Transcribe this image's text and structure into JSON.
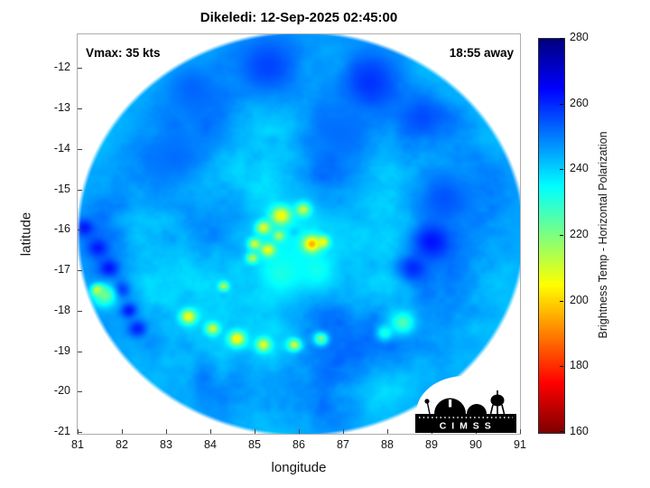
{
  "header": {
    "title": "Dikeledi: 12-Sep-2025 02:45:00"
  },
  "annotations": {
    "vmax": "Vmax: 35 kts",
    "eta": "18:55 away"
  },
  "axes": {
    "xlabel": "longitude",
    "ylabel": "latitude",
    "xlim": [
      81,
      91
    ],
    "ylim": [
      -21.04,
      -11.17
    ],
    "xticks": [
      81,
      82,
      83,
      84,
      85,
      86,
      87,
      88,
      89,
      90,
      91
    ],
    "yticks": [
      -12,
      -13,
      -14,
      -15,
      -16,
      -17,
      -18,
      -19,
      -20,
      -21
    ]
  },
  "colorbar": {
    "label": "Brightness Temp - Horizontal Polarization",
    "min": 160,
    "max": 280,
    "ticks": [
      280,
      260,
      240,
      220,
      200,
      180,
      160
    ],
    "colormap": "jet_reversed"
  },
  "logo": {
    "text": "C I M S S"
  },
  "colors": {
    "background": "#ffffff",
    "text": "#000000",
    "axis_box": "#adadad",
    "colorbar_top": "#000080",
    "colorbar_bottom": "#800000"
  },
  "chart_data": {
    "type": "heatmap",
    "title": "Dikeledi: 12-Sep-2025 02:45:00",
    "storm_name": "Dikeledi",
    "valid_time": "12-Sep-2025 02:45:00",
    "vmax_kts": 35,
    "eta_label": "18:55 away",
    "xlabel": "longitude",
    "ylabel": "latitude",
    "xlim": [
      81,
      91
    ],
    "ylim": [
      -21.04,
      -11.17
    ],
    "value_label": "Brightness Temp - Horizontal Polarization",
    "value_range": [
      160,
      280
    ],
    "grid": false,
    "swath": {
      "center_lon": 86.05,
      "center_lat": -16.1,
      "radius_lon": 5.0,
      "radius_lat": 4.94,
      "background_temp_K": 246,
      "texture_amplitude_K": 9
    },
    "features_format": [
      "lon",
      "lat",
      "temp_K",
      "radius_deg"
    ],
    "features": [
      [
        85.3,
        -11.95,
        257,
        0.85
      ],
      [
        87.6,
        -12.35,
        259,
        0.7
      ],
      [
        88.8,
        -13.2,
        256,
        0.5
      ],
      [
        83.6,
        -12.5,
        253,
        0.6
      ],
      [
        83.2,
        -14.2,
        252,
        0.7
      ],
      [
        86.9,
        -13.6,
        252,
        0.6
      ],
      [
        89.3,
        -15.2,
        255,
        0.6
      ],
      [
        89.0,
        -16.3,
        263,
        0.42
      ],
      [
        88.6,
        -16.95,
        260,
        0.35
      ],
      [
        81.15,
        -15.95,
        262,
        0.22
      ],
      [
        81.45,
        -16.45,
        262,
        0.22
      ],
      [
        81.7,
        -16.95,
        263,
        0.22
      ],
      [
        81.95,
        -17.5,
        262,
        0.22
      ],
      [
        82.15,
        -18.0,
        262,
        0.2
      ],
      [
        82.35,
        -18.45,
        261,
        0.2
      ],
      [
        85.8,
        -16.3,
        236,
        0.95
      ],
      [
        85.6,
        -17.1,
        232,
        0.5
      ],
      [
        86.4,
        -17.0,
        233,
        0.45
      ],
      [
        85.6,
        -15.65,
        204,
        0.22
      ],
      [
        85.2,
        -15.95,
        208,
        0.16
      ],
      [
        86.1,
        -15.5,
        212,
        0.16
      ],
      [
        86.3,
        -16.35,
        195,
        0.2
      ],
      [
        86.55,
        -16.3,
        205,
        0.14
      ],
      [
        85.3,
        -16.5,
        206,
        0.16
      ],
      [
        85.0,
        -16.35,
        210,
        0.14
      ],
      [
        84.95,
        -16.7,
        214,
        0.13
      ],
      [
        85.55,
        -16.15,
        215,
        0.13
      ],
      [
        84.3,
        -17.4,
        213,
        0.11
      ],
      [
        83.5,
        -18.15,
        205,
        0.18
      ],
      [
        84.05,
        -18.45,
        211,
        0.15
      ],
      [
        84.6,
        -18.7,
        203,
        0.18
      ],
      [
        85.2,
        -18.85,
        208,
        0.16
      ],
      [
        85.9,
        -18.85,
        212,
        0.15
      ],
      [
        86.5,
        -18.7,
        221,
        0.16
      ],
      [
        81.45,
        -17.5,
        198,
        0.13
      ],
      [
        81.6,
        -17.62,
        222,
        0.28
      ],
      [
        88.35,
        -18.3,
        226,
        0.28
      ],
      [
        87.95,
        -18.55,
        232,
        0.2
      ],
      [
        85.9,
        -16.05,
        240,
        0.1
      ]
    ]
  }
}
